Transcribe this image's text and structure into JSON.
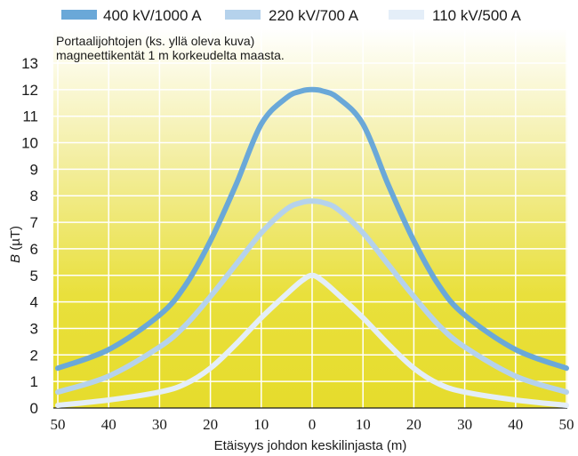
{
  "chart_data": {
    "type": "line",
    "note_line1": "Portaalijohtojen (ks. yllä oleva kuva)",
    "note_line2": "magneettikentät 1 m korkeudelta maasta.",
    "xlabel": "Etäisyys johdon keskilinjasta (m)",
    "ylabel_symbol": "B",
    "ylabel_unit": " (µT)",
    "x_ticks": [
      50,
      40,
      30,
      20,
      10,
      0,
      10,
      20,
      30,
      40,
      50
    ],
    "y_ticks": [
      0,
      1,
      2,
      3,
      4,
      5,
      6,
      7,
      8,
      9,
      10,
      11,
      12,
      13
    ],
    "xlim": [
      -50,
      50
    ],
    "ylim": [
      0,
      13
    ],
    "grid": true,
    "legend_position": "top",
    "x": [
      -50,
      -40,
      -30,
      -25,
      -20,
      -15,
      -10,
      -5,
      -2,
      0,
      2,
      5,
      10,
      15,
      20,
      25,
      30,
      40,
      50
    ],
    "series": [
      {
        "name": "400 kV/1000 A",
        "color": "#6aa8d8",
        "values": [
          1.5,
          2.2,
          3.5,
          4.6,
          6.3,
          8.4,
          10.7,
          11.7,
          11.95,
          12.0,
          11.95,
          11.7,
          10.7,
          8.4,
          6.3,
          4.6,
          3.5,
          2.2,
          1.5
        ]
      },
      {
        "name": "220 kV/700 A",
        "color": "#b5d2ec",
        "values": [
          0.6,
          1.2,
          2.3,
          3.1,
          4.2,
          5.4,
          6.6,
          7.5,
          7.75,
          7.8,
          7.75,
          7.5,
          6.6,
          5.4,
          4.2,
          3.1,
          2.3,
          1.2,
          0.6
        ]
      },
      {
        "name": "110 kV/500 A",
        "color": "#e4eef8",
        "values": [
          0.1,
          0.3,
          0.6,
          0.9,
          1.5,
          2.4,
          3.4,
          4.3,
          4.8,
          5.0,
          4.8,
          4.3,
          3.4,
          2.4,
          1.5,
          0.9,
          0.6,
          0.3,
          0.1
        ]
      }
    ],
    "colors": {
      "bg_top": "#ffffff",
      "bg_bottom": "#e9e03c",
      "grid": "#ffffff",
      "axis": "#1a1a1a"
    }
  }
}
